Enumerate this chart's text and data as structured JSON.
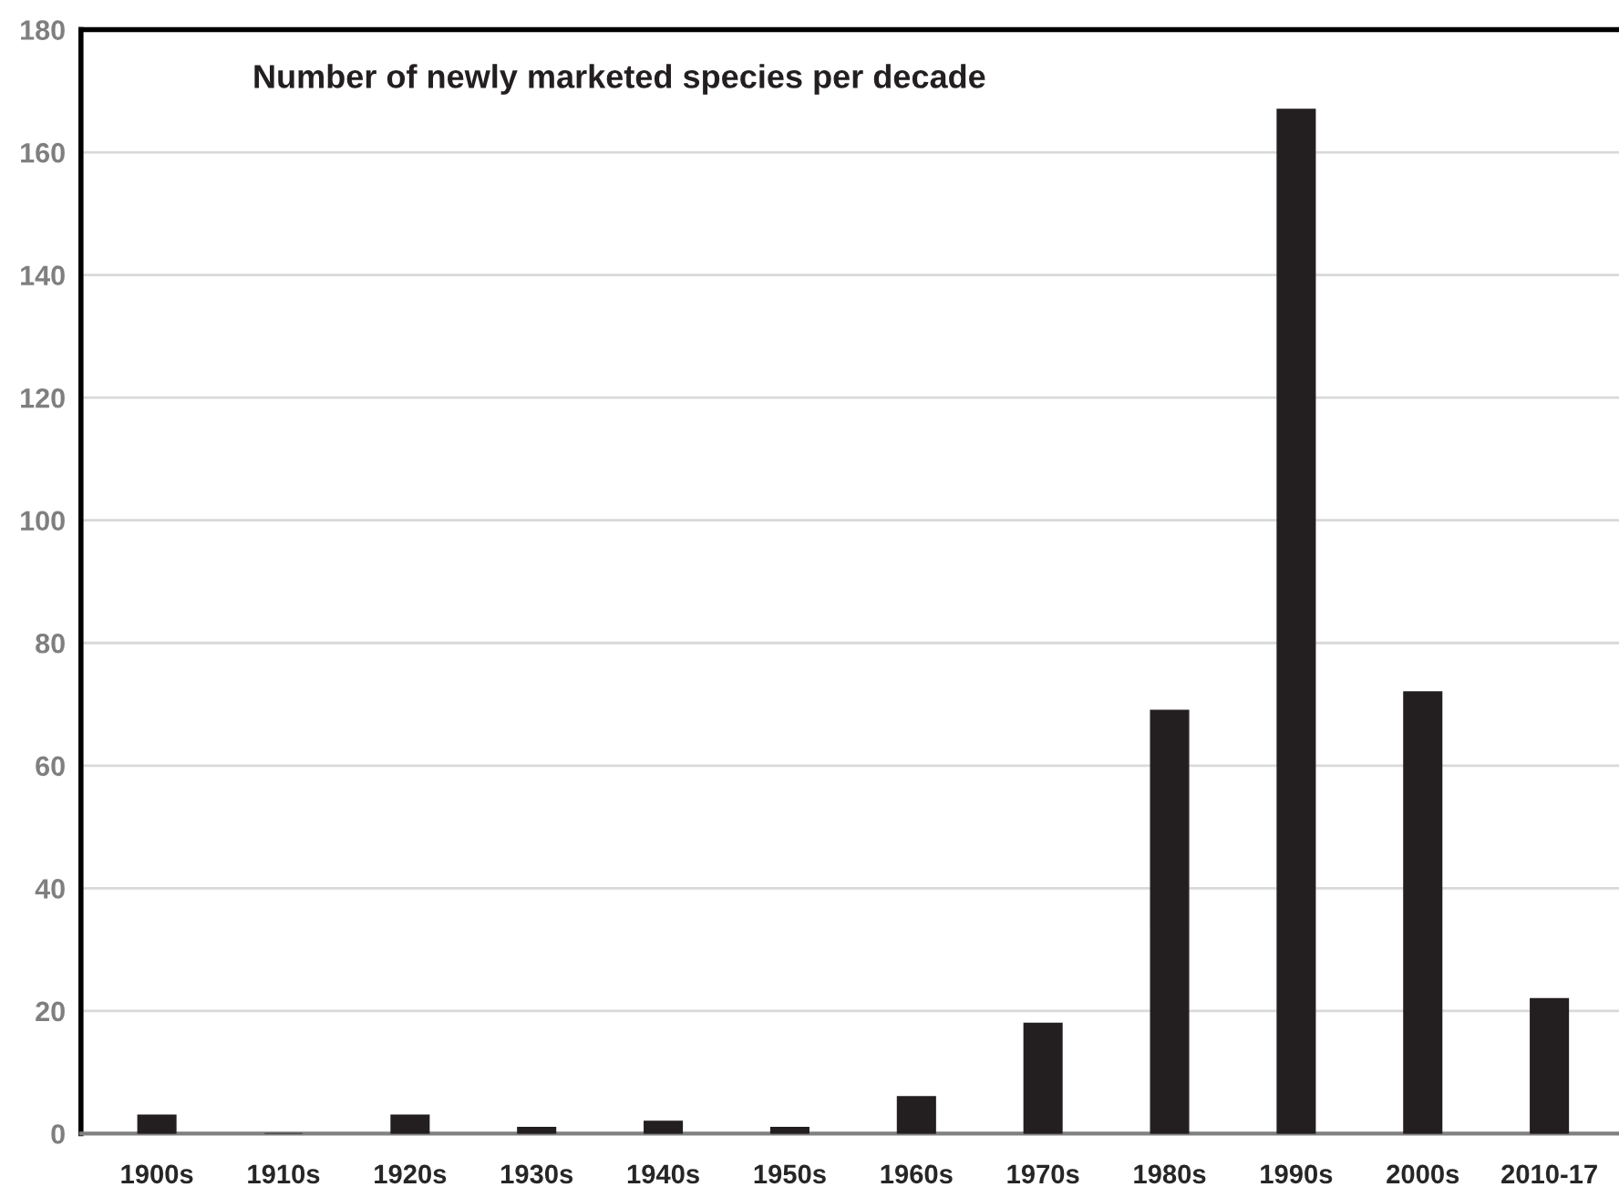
{
  "chart_data": {
    "type": "bar",
    "title": "Number of newly marketed species per decade",
    "categories": [
      "1900s",
      "1910s",
      "1920s",
      "1930s",
      "1940s",
      "1950s",
      "1960s",
      "1970s",
      "1980s",
      "1990s",
      "2000s",
      "2010-17"
    ],
    "values": [
      3,
      0,
      3,
      1,
      2,
      1,
      6,
      18,
      69,
      167,
      72,
      22
    ],
    "color": "#231f20",
    "ylim": [
      0,
      180
    ],
    "yticks": [
      0,
      20,
      40,
      60,
      80,
      100,
      120,
      140,
      160,
      180
    ],
    "grid": "y"
  }
}
